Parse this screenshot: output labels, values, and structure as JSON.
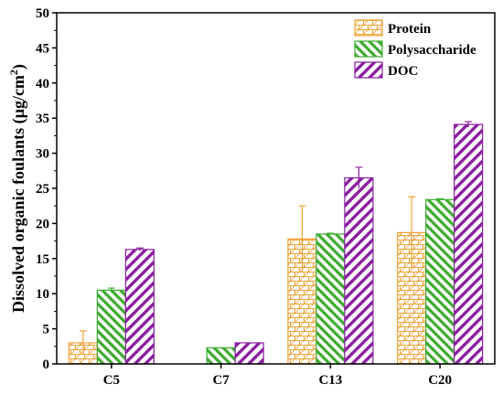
{
  "chart_data": {
    "type": "bar",
    "ylabel": "Dissolved organic foulants (µg/cm²)",
    "ylabel_main": "Dissolved organic foulants (µg/cm",
    "ylabel_sup": "2",
    "ylabel_tail": ")",
    "xlabel": "",
    "title": "",
    "ylim": [
      0,
      50
    ],
    "yticks": [
      "0",
      "5",
      "10",
      "15",
      "20",
      "25",
      "30",
      "35",
      "40",
      "45",
      "50"
    ],
    "categories": [
      "C5",
      "C7",
      "C13",
      "C20"
    ],
    "series": [
      {
        "name": "Protein",
        "color": "#f2a33a",
        "pattern": "brick",
        "values": [
          3.0,
          null,
          17.8,
          18.7
        ],
        "errors": [
          1.7,
          null,
          4.7,
          5.1
        ]
      },
      {
        "name": "Polysaccharide",
        "color": "#3cab2e",
        "pattern": "hatch-back",
        "values": [
          10.5,
          2.3,
          18.5,
          23.4
        ],
        "errors": [
          0.3,
          0.0,
          0.1,
          0.1
        ]
      },
      {
        "name": "DOC",
        "color": "#8a1fa0",
        "pattern": "hatch-forward",
        "values": [
          16.3,
          3.0,
          26.5,
          34.1
        ],
        "errors": [
          0.2,
          0.0,
          1.5,
          0.4
        ]
      }
    ],
    "legend_position": "top-right",
    "grid": false
  }
}
